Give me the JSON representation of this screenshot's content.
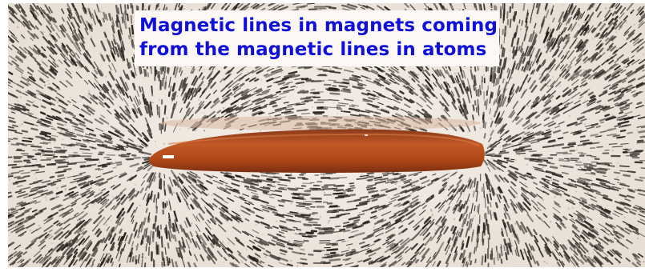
{
  "caption": {
    "line1": "Magnetic lines in magnets coming",
    "line2": "from the magnetic lines in atoms"
  },
  "colors": {
    "caption_text": "#1010d8",
    "caption_box": "#fbf8f6",
    "paper": "#efe9e2",
    "filings": "#2a2a2a",
    "magnet": "#b24a1c"
  },
  "photo": {
    "subject": "iron-filings-around-bar-magnet"
  }
}
